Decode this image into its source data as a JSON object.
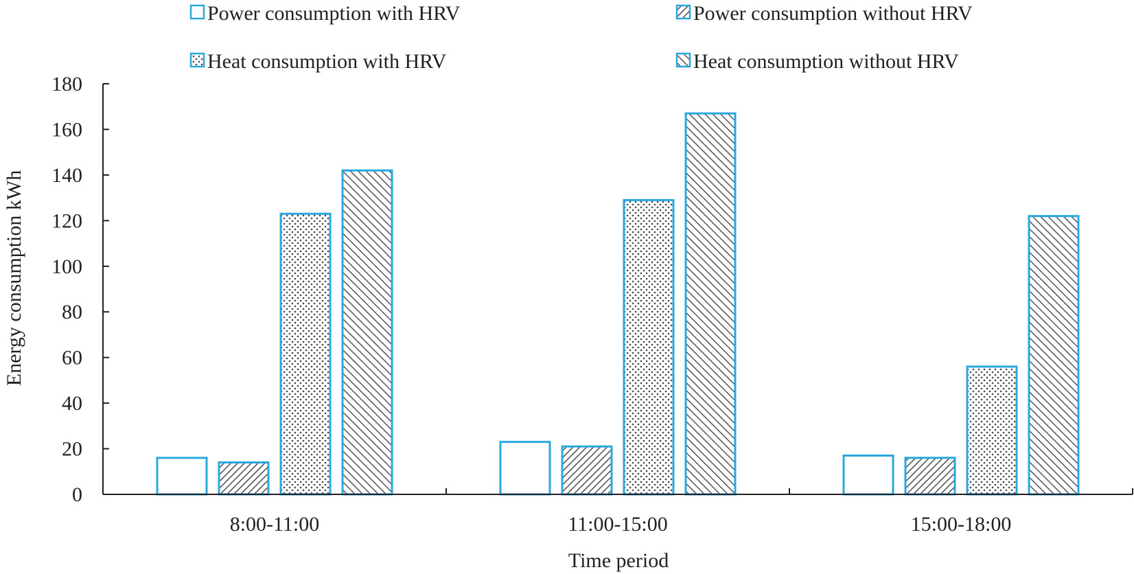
{
  "chart_data": {
    "type": "bar",
    "title": "",
    "xlabel": "Time period",
    "ylabel": "Energy consumption kWh",
    "ylim": [
      0,
      180
    ],
    "yticks": [
      0,
      20,
      40,
      60,
      80,
      100,
      120,
      140,
      160,
      180
    ],
    "categories": [
      "8:00-11:00",
      "11:00-15:00",
      "15:00-18:00"
    ],
    "series": [
      {
        "name": "Power consumption with HRV",
        "pattern": "none",
        "values": [
          16,
          23,
          17
        ]
      },
      {
        "name": "Power consumption without HRV",
        "pattern": "diagonal-dense",
        "values": [
          14,
          21,
          16
        ]
      },
      {
        "name": "Heat consumption with HRV",
        "pattern": "dots",
        "values": [
          123,
          129,
          56
        ]
      },
      {
        "name": "Heat consumption without HRV",
        "pattern": "diagonal-light",
        "values": [
          142,
          167,
          122
        ]
      }
    ],
    "legend_position": "top",
    "grid": false,
    "colors": {
      "bar_stroke": "#29a8e0",
      "axis": "#231f20",
      "pattern_ink": "#4a4a4a"
    }
  }
}
